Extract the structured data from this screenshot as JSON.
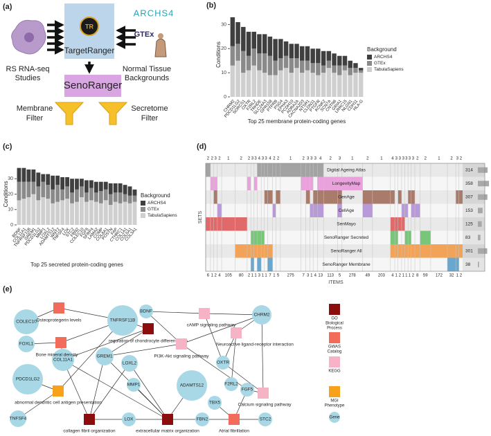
{
  "panel_a": {
    "panel_label": "(a)",
    "studies": [
      "RS RNA-seq",
      "Studies"
    ],
    "target_ranger": "TargetRanger",
    "logo": "TR",
    "archs4": "ARCHS4",
    "gtex": "GTEx",
    "backgrounds": [
      "Normal Tissue",
      "Backgrounds"
    ],
    "seno_ranger": "SenoRanger",
    "membrane_filter": [
      "Membrane",
      "Filter"
    ],
    "secretome_filter": [
      "Secretome",
      "Filter"
    ]
  },
  "chart_data": [
    {
      "type": "bar",
      "stacked": true,
      "panel_label": "(b)",
      "ylabel": "Conditions",
      "xlabel": "Top 25 membrane protein-coding genes",
      "legend_title": "Background",
      "categories": [
        "CHRM2",
        "PDCD1LG2",
        "SORCS1",
        "OXTR",
        "F2RL2",
        "TRHDE",
        "SLC24A3",
        "GPR158",
        "PTPRB",
        "PSG4",
        "EPHA3",
        "PCDH10",
        "ADRA2A",
        "CACNA2D3",
        "NTSR1",
        "CLDN11",
        "PTGFR",
        "KCNK2",
        "SCN7A",
        "CNTN6",
        "GRIA1",
        "LRRC15",
        "NLGN1",
        "CDH11",
        "HLA-G"
      ],
      "series": [
        {
          "name": "ARCHS4",
          "color": "#3f3f3f",
          "values": [
            12,
            9,
            10,
            10,
            7,
            8,
            8,
            8,
            9,
            8,
            6,
            6,
            6,
            6,
            6,
            6,
            6,
            6,
            4,
            5,
            4,
            4,
            3,
            2,
            1
          ]
        },
        {
          "name": "GTEx",
          "color": "#8a8a8a",
          "values": [
            8,
            7,
            9,
            6,
            7,
            7,
            8,
            8,
            6,
            5,
            5,
            6,
            4,
            5,
            4,
            4,
            5,
            3,
            3,
            3,
            4,
            2,
            3,
            2,
            1
          ]
        },
        {
          "name": "TabulaSapiens",
          "color": "#cfcfcf",
          "values": [
            13,
            15,
            10,
            11,
            13,
            11,
            10,
            9,
            9,
            11,
            12,
            10,
            12,
            10,
            11,
            10,
            9,
            10,
            12,
            10,
            9,
            11,
            9,
            10,
            10
          ]
        }
      ],
      "ylim": [
        0,
        35
      ],
      "yticks": [
        0,
        10,
        20,
        30
      ]
    },
    {
      "type": "bar",
      "stacked": true,
      "panel_label": "(c)",
      "ylabel": "Conditions",
      "xlabel": "Top 25 secreted protein-coding genes",
      "legend_title": "Background",
      "categories": [
        "BDNF",
        "COL11A1",
        "TNFRSF11B",
        "GREM1",
        "PDCD1LG2",
        "MMP1",
        "LOXL2",
        "ADAMTS12",
        "WNT2",
        "TNFSF4",
        "LOX",
        "STC2",
        "FBN2",
        "COLEC10",
        "FGF5",
        "SFRP4",
        "LAMA2",
        "COMP",
        "COL8A1",
        "POSTN",
        "FAP",
        "CTHRC1",
        "COL1A1",
        "COL5A1",
        "COL3A1"
      ],
      "series": [
        {
          "name": "ARCHS4",
          "color": "#3f3f3f",
          "values": [
            9,
            9,
            8,
            8,
            9,
            5,
            7,
            9,
            6,
            8,
            6,
            9,
            7,
            5,
            8,
            5,
            7,
            6,
            5,
            7,
            6,
            6,
            6,
            6,
            4
          ]
        },
        {
          "name": "GTEx",
          "color": "#8a8a8a",
          "values": [
            12,
            11,
            10,
            8,
            9,
            10,
            9,
            9,
            11,
            7,
            8,
            7,
            8,
            7,
            6,
            8,
            6,
            8,
            7,
            7,
            6,
            7,
            5,
            5,
            4
          ]
        },
        {
          "name": "TabulaSapiens",
          "color": "#cfcfcf",
          "values": [
            16,
            17,
            18,
            20,
            16,
            18,
            17,
            14,
            15,
            16,
            17,
            14,
            15,
            18,
            15,
            16,
            15,
            14,
            16,
            13,
            15,
            14,
            15,
            14,
            15
          ]
        }
      ],
      "ylim": [
        0,
        40
      ],
      "yticks": [
        0,
        10,
        20,
        30
      ]
    }
  ],
  "upset": {
    "panel_label": "(d)",
    "xlabel": "ITEMS",
    "ylabel": "SETS",
    "sets": [
      {
        "name": "Digital Ageing Atlas",
        "size": 314,
        "color": "#a3a3a3"
      },
      {
        "name": "LongevityMap",
        "size": 358,
        "color": "#eaa2dc"
      },
      {
        "name": "GenAge",
        "size": 307,
        "color": "#a97b6b"
      },
      {
        "name": "CellAge",
        "size": 153,
        "color": "#b99ad9"
      },
      {
        "name": "SenMayo",
        "size": 125,
        "color": "#e06a6a"
      },
      {
        "name": "SenoRanger Secreted",
        "size": 83,
        "color": "#79c57a"
      },
      {
        "name": "SenoRanger All",
        "size": 301,
        "color": "#f2a357"
      },
      {
        "name": "SenoRanger Membrane",
        "size": 38,
        "color": "#6aa7cf"
      }
    ],
    "columns": [
      {
        "degree": 2,
        "items": 6,
        "sets": [
          0,
          4
        ]
      },
      {
        "degree": 2,
        "items": 1,
        "sets": [
          1,
          4
        ]
      },
      {
        "degree": 3,
        "items": 2,
        "sets": [
          1,
          2,
          4
        ]
      },
      {
        "degree": 2,
        "items": 4,
        "sets": [
          3,
          4
        ]
      },
      {
        "degree": 1,
        "items": 105,
        "sets": [
          4
        ]
      },
      {
        "degree": 2,
        "items": 80,
        "sets": [
          4,
          6
        ]
      },
      {
        "degree": 2,
        "items": 2,
        "sets": [
          1,
          6
        ]
      },
      {
        "degree": 3,
        "items": 1,
        "sets": [
          5,
          6,
          7
        ]
      },
      {
        "degree": 3,
        "items": 1,
        "sets": [
          1,
          5,
          6
        ]
      },
      {
        "degree": 4,
        "items": 3,
        "sets": [
          0,
          5,
          6,
          7
        ]
      },
      {
        "degree": 3,
        "items": 1,
        "sets": [
          0,
          5,
          6
        ]
      },
      {
        "degree": 3,
        "items": 1,
        "sets": [
          0,
          2,
          6
        ]
      },
      {
        "degree": 4,
        "items": 7,
        "sets": [
          0,
          2,
          6,
          7
        ]
      },
      {
        "degree": 2,
        "items": 1,
        "sets": [
          0,
          3
        ]
      },
      {
        "degree": 2,
        "items": 5,
        "sets": [
          0,
          2
        ]
      },
      {
        "degree": 1,
        "items": 275,
        "sets": [
          0
        ]
      },
      {
        "degree": 2,
        "items": 7,
        "sets": [
          0,
          1
        ]
      },
      {
        "degree": 3,
        "items": 3,
        "sets": [
          0,
          1,
          2
        ]
      },
      {
        "degree": 3,
        "items": 1,
        "sets": [
          0,
          1,
          3
        ]
      },
      {
        "degree": 3,
        "items": 4,
        "sets": [
          0,
          2,
          3
        ]
      },
      {
        "degree": 4,
        "items": 13,
        "sets": [
          0,
          1,
          2,
          3
        ]
      },
      {
        "degree": 2,
        "items": 113,
        "sets": [
          1,
          2
        ]
      },
      {
        "degree": 3,
        "items": 5,
        "sets": [
          1,
          2,
          3
        ]
      },
      {
        "degree": 1,
        "items": 278,
        "sets": [
          1
        ]
      },
      {
        "degree": 2,
        "items": 49,
        "sets": [
          2,
          3
        ]
      },
      {
        "degree": 1,
        "items": 203,
        "sets": [
          2
        ]
      },
      {
        "degree": 4,
        "items": 4,
        "sets": [
          2,
          4,
          5,
          6
        ]
      },
      {
        "degree": 3,
        "items": 1,
        "sets": [
          4,
          5,
          6
        ]
      },
      {
        "degree": 3,
        "items": 2,
        "sets": [
          2,
          4,
          6
        ]
      },
      {
        "degree": 3,
        "items": 1,
        "sets": [
          3,
          4,
          6
        ]
      },
      {
        "degree": 3,
        "items": 1,
        "sets": [
          3,
          5,
          6
        ]
      },
      {
        "degree": 3,
        "items": 1,
        "sets": [
          2,
          5,
          6
        ]
      },
      {
        "degree": 3,
        "items": 2,
        "sets": [
          2,
          3,
          6
        ]
      },
      {
        "degree": 2,
        "items": 8,
        "sets": [
          3,
          6
        ]
      },
      {
        "degree": 2,
        "items": 59,
        "sets": [
          5,
          6
        ]
      },
      {
        "degree": 1,
        "items": 172,
        "sets": [
          6
        ]
      },
      {
        "degree": 2,
        "items": 32,
        "sets": [
          6,
          7
        ]
      },
      {
        "degree": 3,
        "items": 1,
        "sets": [
          2,
          6,
          7
        ]
      },
      {
        "degree": 2,
        "items": 2,
        "sets": [
          2,
          6
        ]
      }
    ]
  },
  "network": {
    "panel_label": "(e)",
    "node_types": [
      {
        "name": [
          "GO",
          "Biological",
          "Process"
        ],
        "color": "#8b0d0d",
        "shape": "square"
      },
      {
        "name": [
          "GWAS",
          "Catalog"
        ],
        "color": "#f26b5b",
        "shape": "square"
      },
      {
        "name": [
          "KEGG"
        ],
        "color": "#f7b3c6",
        "shape": "square"
      },
      {
        "name": [
          "MGI",
          "Phenotype"
        ],
        "color": "#f6a21b",
        "shape": "square"
      },
      {
        "name": [
          "Gene"
        ],
        "color": "#a8d8e6",
        "shape": "circle"
      }
    ],
    "nodes": [
      {
        "label": "COLEC10",
        "type": 4
      },
      {
        "label": "TNFRSF11B",
        "type": 4
      },
      {
        "label": "FOXL1",
        "type": 4
      },
      {
        "label": "PDCD1LG2",
        "type": 4
      },
      {
        "label": "COL11A1",
        "type": 4
      },
      {
        "label": "GREM1",
        "type": 4
      },
      {
        "label": "LOXL2",
        "type": 4
      },
      {
        "label": "MMP1",
        "type": 4
      },
      {
        "label": "BDNF",
        "type": 4
      },
      {
        "label": "ADAMTS12",
        "type": 4
      },
      {
        "label": "TNFSF4",
        "type": 4
      },
      {
        "label": "LOX",
        "type": 4
      },
      {
        "label": "FBN2",
        "type": 4
      },
      {
        "label": "CHRM2",
        "type": 4
      },
      {
        "label": "OXTR",
        "type": 4
      },
      {
        "label": "F2RL2",
        "type": 4
      },
      {
        "label": "FGF5",
        "type": 4
      },
      {
        "label": "TBX5",
        "type": 4
      },
      {
        "label": "STC2",
        "type": 4
      },
      {
        "label": "Osteoprotegerin levels",
        "type": 1
      },
      {
        "label": "Bone mineral density",
        "type": 1
      },
      {
        "label": "regulation of chondrocyte differentiation",
        "type": 0
      },
      {
        "label": "cAMP signaling pathway",
        "type": 2
      },
      {
        "label": "Neuroactive ligand-receptor interaction",
        "type": 2
      },
      {
        "label": "PI3K-Akt signaling pathway",
        "type": 2
      },
      {
        "label": "abnormal dendritic cell antigen presentation",
        "type": 3
      },
      {
        "label": "collagen fibril organization",
        "type": 0
      },
      {
        "label": "extracellular matrix organization",
        "type": 0
      },
      {
        "label": "Atrial fibrillation",
        "type": 1
      },
      {
        "label": "Calcium signaling pathway",
        "type": 2
      }
    ],
    "edges": [
      [
        19,
        0
      ],
      [
        19,
        1
      ],
      [
        20,
        2
      ],
      [
        20,
        1
      ],
      [
        20,
        4
      ],
      [
        21,
        1
      ],
      [
        21,
        5
      ],
      [
        21,
        4
      ],
      [
        22,
        8
      ],
      [
        22,
        13
      ],
      [
        22,
        14
      ],
      [
        23,
        13
      ],
      [
        23,
        14
      ],
      [
        23,
        15
      ],
      [
        24,
        8
      ],
      [
        24,
        5
      ],
      [
        24,
        16
      ],
      [
        24,
        13
      ],
      [
        25,
        3
      ],
      [
        25,
        10
      ],
      [
        25,
        1
      ],
      [
        26,
        4
      ],
      [
        26,
        11
      ],
      [
        26,
        6
      ],
      [
        26,
        5
      ],
      [
        27,
        4
      ],
      [
        27,
        11
      ],
      [
        27,
        6
      ],
      [
        27,
        7
      ],
      [
        27,
        9
      ],
      [
        27,
        12
      ],
      [
        27,
        5
      ],
      [
        28,
        12
      ],
      [
        28,
        17
      ],
      [
        28,
        18
      ],
      [
        28,
        16
      ],
      [
        29,
        13
      ],
      [
        29,
        14
      ],
      [
        29,
        16
      ]
    ]
  }
}
